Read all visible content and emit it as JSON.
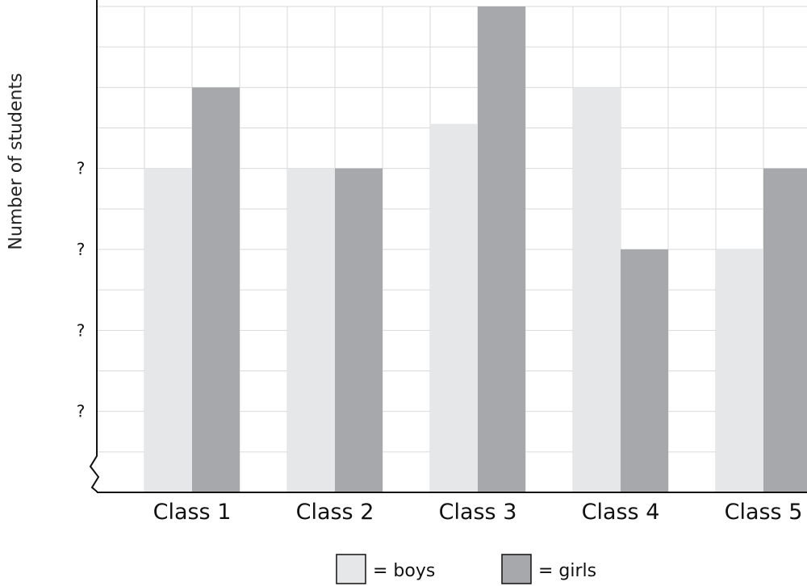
{
  "chart_data": {
    "type": "bar",
    "title": "",
    "xlabel": "",
    "ylabel": "Number of students",
    "categories": [
      "Class 1",
      "Class 2",
      "Class 3",
      "Class 4",
      "Class 5"
    ],
    "series": [
      {
        "name": "boys",
        "color": "#e6e7e9",
        "values": [
          6,
          6,
          7.1,
          8,
          4
        ]
      },
      {
        "name": "girls",
        "color": "#a7a8ab",
        "values": [
          8,
          6,
          10,
          4,
          6
        ]
      }
    ],
    "ylim": [
      -2,
      10
    ],
    "yticks": [
      0,
      2,
      4,
      6,
      8,
      10
    ],
    "ytick_labels": [
      "?",
      "?",
      "?",
      "?"
    ],
    "ytick_label_values": [
      0,
      2,
      4,
      6
    ],
    "y_axis_break": true,
    "grid": true,
    "legend": {
      "position": "bottom-center",
      "items": [
        {
          "label": "= boys",
          "color": "#e6e7e9"
        },
        {
          "label": "= girls",
          "color": "#a7a8ab"
        }
      ]
    }
  }
}
